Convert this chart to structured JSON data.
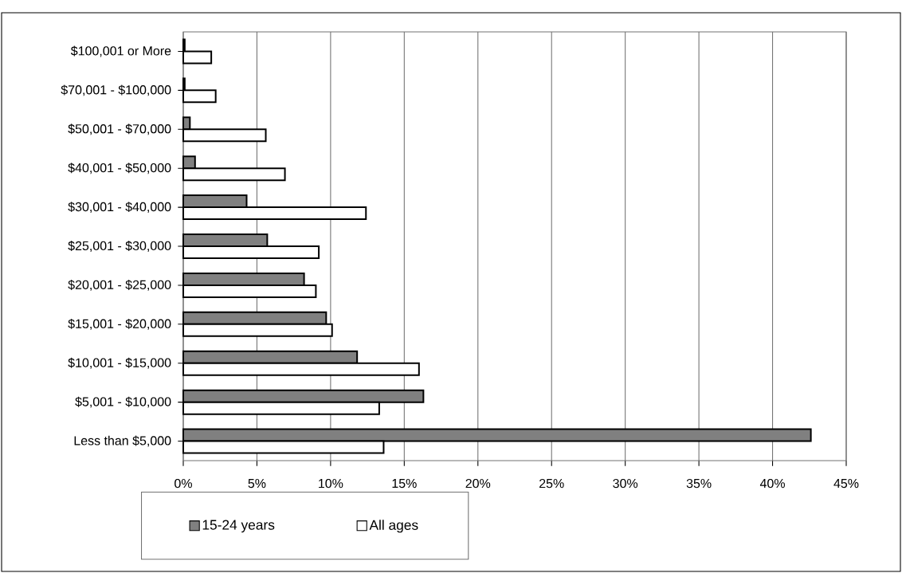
{
  "chart_data": {
    "type": "bar",
    "orientation": "horizontal",
    "categories": [
      "$100,001 or More",
      "$70,001 - $100,000",
      "$50,001 - $70,000",
      "$40,001 - $50,000",
      "$30,001 - $40,000",
      "$25,001 - $30,000",
      "$20,001 - $25,000",
      "$15,001 - $20,000",
      "$10,001 - $15,000",
      "$5,001 - $10,000",
      "Less than $5,000"
    ],
    "series": [
      {
        "name": "15-24 years",
        "color": "#808080",
        "values": [
          0.1,
          0.1,
          0.45,
          0.8,
          4.3,
          5.7,
          8.2,
          9.7,
          11.8,
          16.3,
          42.6
        ]
      },
      {
        "name": "All ages",
        "color": "#ffffff",
        "values": [
          1.9,
          2.2,
          5.6,
          6.9,
          12.4,
          9.2,
          9.0,
          10.1,
          16.0,
          13.3,
          13.6
        ]
      }
    ],
    "xlim": [
      0,
      45
    ],
    "xticks": [
      {
        "value": 0,
        "label": "0%"
      },
      {
        "value": 5,
        "label": "5%"
      },
      {
        "value": 10,
        "label": "10%"
      },
      {
        "value": 15,
        "label": "15%"
      },
      {
        "value": 20,
        "label": "20%"
      },
      {
        "value": 25,
        "label": "25%"
      },
      {
        "value": 30,
        "label": "30%"
      },
      {
        "value": 35,
        "label": "35%"
      },
      {
        "value": 40,
        "label": "40%"
      },
      {
        "value": 45,
        "label": "45%"
      }
    ],
    "grid": "x",
    "legend": "bottom"
  }
}
